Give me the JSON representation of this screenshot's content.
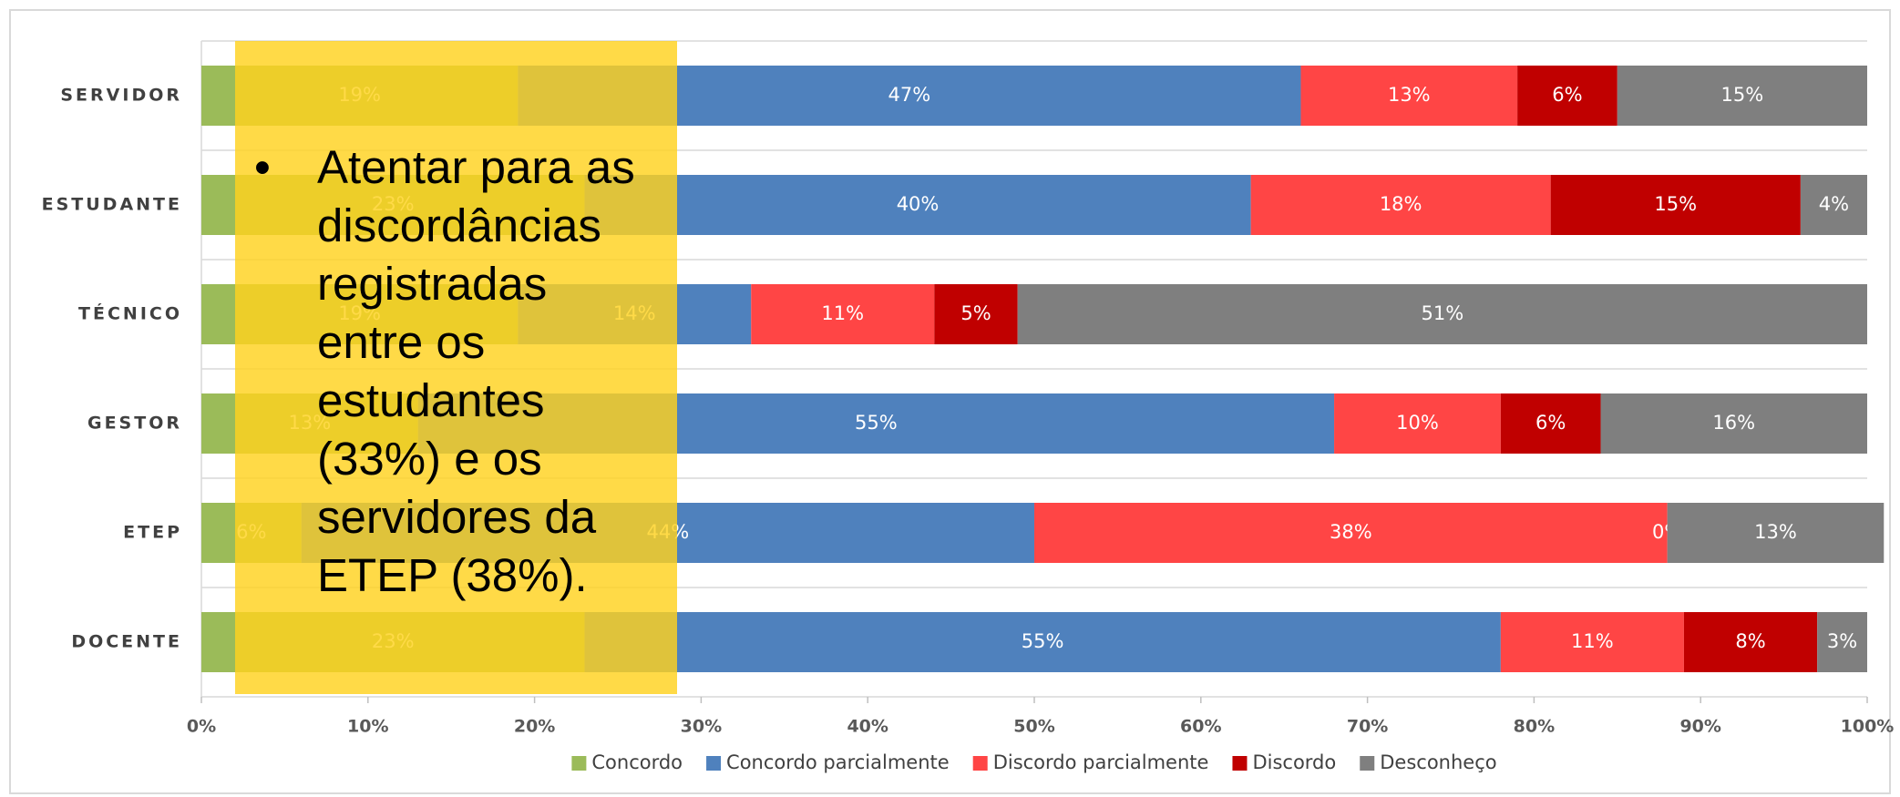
{
  "chart_data": {
    "type": "stacked-bar-horizontal",
    "categories": [
      "SERVIDOR",
      "ESTUDANTE",
      "TÉCNICO",
      "GESTOR",
      "ETEP",
      "DOCENTE"
    ],
    "series": [
      {
        "name": "Concordo",
        "color": "#9bbb59",
        "values": [
          19,
          23,
          19,
          13,
          6,
          23
        ],
        "value_labels": [
          "19%",
          "23%",
          "19%",
          "13%",
          "6%",
          "23%"
        ]
      },
      {
        "name": "Concordo parcialmente",
        "color": "#4f81bd",
        "values": [
          47,
          40,
          14,
          55,
          44,
          55
        ],
        "value_labels": [
          "47%",
          "40%",
          "14%",
          "55%",
          "44%",
          "55%"
        ]
      },
      {
        "name": "Discordo parcialmente",
        "color": "#ff4545",
        "values": [
          13,
          18,
          11,
          10,
          38,
          11
        ],
        "value_labels": [
          "13%",
          "18%",
          "11%",
          "10%",
          "38%",
          "11%"
        ]
      },
      {
        "name": "Discordo",
        "color": "#c00000",
        "values": [
          6,
          15,
          5,
          6,
          0,
          8
        ],
        "value_labels": [
          "6%",
          "15%",
          "5%",
          "6%",
          "0%",
          "8%"
        ]
      },
      {
        "name": "Desconheço",
        "color": "#7f7f7f",
        "values": [
          15,
          4,
          51,
          16,
          13,
          3
        ],
        "value_labels": [
          "15%",
          "4%",
          "51%",
          "16%",
          "13%",
          "3%"
        ]
      }
    ],
    "xlim": [
      0,
      100
    ],
    "xticks": [
      {
        "value": 0,
        "label": "0%"
      },
      {
        "value": 10,
        "label": "10%"
      },
      {
        "value": 20,
        "label": "20%"
      },
      {
        "value": 30,
        "label": "30%"
      },
      {
        "value": 40,
        "label": "40%"
      },
      {
        "value": 50,
        "label": "50%"
      },
      {
        "value": 60,
        "label": "60%"
      },
      {
        "value": 70,
        "label": "70%"
      },
      {
        "value": 80,
        "label": "80%"
      },
      {
        "value": 90,
        "label": "90%"
      },
      {
        "value": 100,
        "label": "100%"
      }
    ],
    "legend": "bottom",
    "annotation": {
      "bullet": "•",
      "lines": [
        "Atentar para as",
        "discordâncias",
        "registradas",
        "entre os",
        "estudantes",
        "(33%) e os",
        "servidores da",
        "ETEP (38%)."
      ]
    }
  }
}
